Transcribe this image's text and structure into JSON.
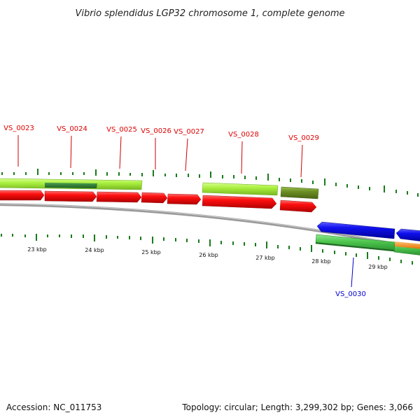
{
  "title": "Vibrio splendidus LGP32 chromosome 1, complete genome",
  "footer": {
    "accession": "Accession: NC_011753",
    "summary": "Topology: circular; Length: 3,299,302 bp; Genes: 3,066"
  },
  "colors": {
    "forward_cds": "#ff0000",
    "reverse_cds": "#1010ee",
    "forward_label": "#dd0000",
    "reverse_label": "#0000cc",
    "light_green": "#aaf040",
    "medium_green": "#50c850",
    "dark_green": "#2e7d32",
    "olive": "#6b8e23",
    "orange": "#ff8c00",
    "backbone": "#808080",
    "tick": "#1a7a1a"
  },
  "kbp_ticks": [
    "23 kbp",
    "24 kbp",
    "25 kbp",
    "26 kbp",
    "27 kbp",
    "28 kbp",
    "29 kbp"
  ],
  "genes": [
    {
      "id": "VS_0023",
      "label": "VS_0023",
      "strand": "forward"
    },
    {
      "id": "VS_0024",
      "label": "VS_0024",
      "strand": "forward"
    },
    {
      "id": "VS_0025",
      "label": "VS_0025",
      "strand": "forward"
    },
    {
      "id": "VS_0026",
      "label": "VS_0026",
      "strand": "forward"
    },
    {
      "id": "VS_0027",
      "label": "VS_0027",
      "strand": "forward"
    },
    {
      "id": "VS_0028",
      "label": "VS_0028",
      "strand": "forward"
    },
    {
      "id": "VS_0029",
      "label": "VS_0029",
      "strand": "forward"
    },
    {
      "id": "VS_0030",
      "label": "VS_0030",
      "strand": "reverse"
    }
  ]
}
